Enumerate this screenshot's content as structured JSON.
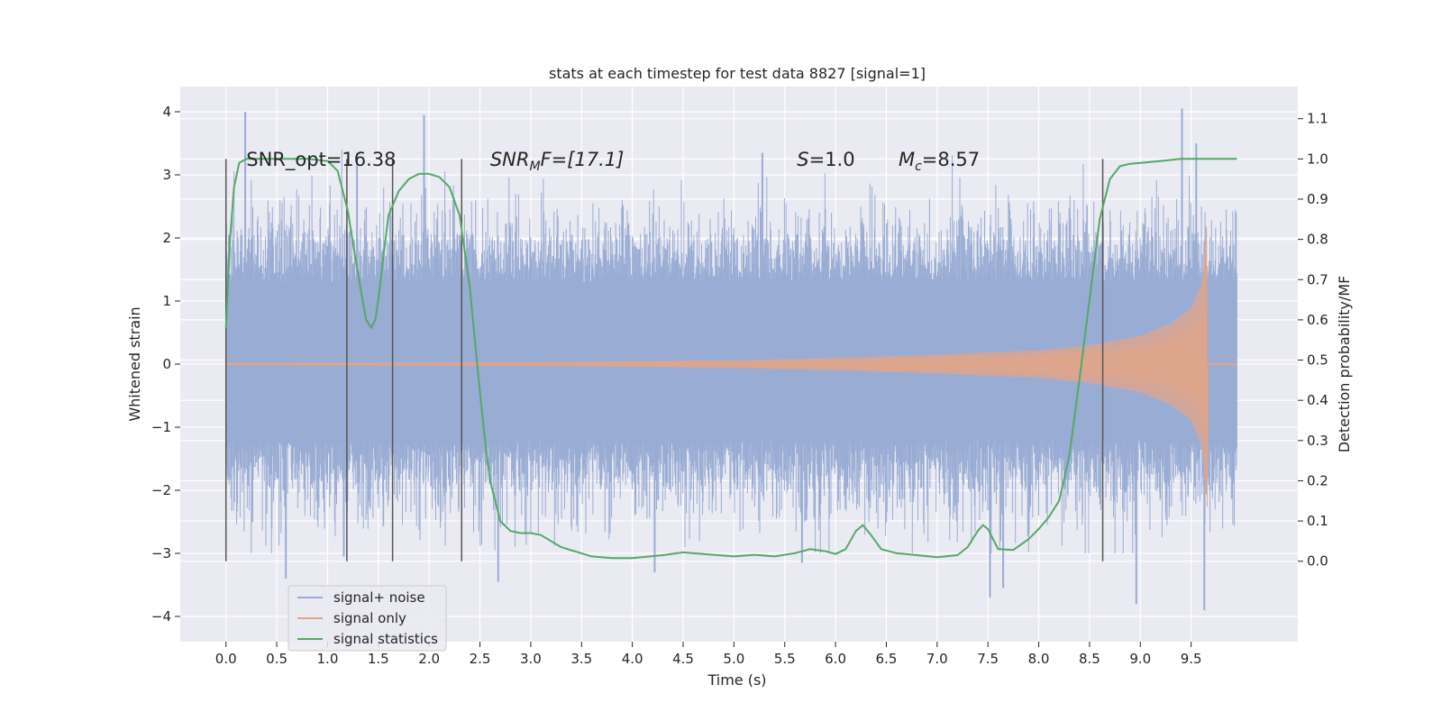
{
  "chart_data": {
    "type": "line",
    "title": "stats at each timestep for test data 8827 [signal=1]",
    "xlabel": "Time (s)",
    "ylabel_left": "Whitened strain",
    "ylabel_right": "Detection probability/MF",
    "xlim": [
      -0.45,
      10.55
    ],
    "ylim_left": [
      -4.4,
      4.4
    ],
    "ylim_right": [
      -0.2,
      1.18
    ],
    "x_ticks": [
      "0.0",
      "0.5",
      "1.0",
      "1.5",
      "2.0",
      "2.5",
      "3.0",
      "3.5",
      "4.0",
      "4.5",
      "5.0",
      "5.5",
      "6.0",
      "6.5",
      "7.0",
      "7.5",
      "8.0",
      "8.5",
      "9.0",
      "9.5"
    ],
    "y_ticks_left": [
      "4",
      "3",
      "2",
      "1",
      "0",
      "−1",
      "−2",
      "−3",
      "−4"
    ],
    "y_ticks_right": [
      "1.1",
      "1.0",
      "0.9",
      "0.8",
      "0.7",
      "0.6",
      "0.5",
      "0.4",
      "0.3",
      "0.2",
      "0.1",
      "0.0"
    ],
    "grid": true,
    "annotations": [
      {
        "id": "snr-opt",
        "text": "SNR_opt=16.38",
        "x": 0.2
      },
      {
        "id": "snr-mf",
        "text": "SNR",
        "sub": "M",
        "tail": "F=[17.1]",
        "x": 2.6
      },
      {
        "id": "s-stat",
        "text": "S",
        "tail": "=1.0",
        "x": 5.62
      },
      {
        "id": "mchirp",
        "text": "M",
        "sub": "c",
        "tail": "=8.57",
        "x": 6.62
      }
    ],
    "vlines": [
      0.0,
      1.19,
      1.64,
      2.32,
      8.63
    ],
    "vline_range_right": [
      0.0,
      1.0
    ],
    "legend": {
      "position": "lower-left",
      "entries": [
        "signal+ noise",
        "signal only",
        "signal statistics"
      ]
    },
    "series": [
      {
        "name": "signal+ noise",
        "axis": "left",
        "style": "noise-band",
        "x_range": [
          0.0,
          9.95
        ],
        "band_min": -1.2,
        "band_max": 1.3,
        "spike_max": 4.0,
        "spike_min": -3.9,
        "spikes": [
          {
            "x": 0.19,
            "y": 4.0
          },
          {
            "x": 1.29,
            "y": 3.35
          },
          {
            "x": 1.95,
            "y": 3.95
          },
          {
            "x": 5.28,
            "y": 3.35
          },
          {
            "x": 9.41,
            "y": 4.05
          },
          {
            "x": 9.55,
            "y": 3.5
          },
          {
            "x": 0.59,
            "y": -3.4
          },
          {
            "x": 1.16,
            "y": -3.05
          },
          {
            "x": 2.68,
            "y": -3.45
          },
          {
            "x": 4.22,
            "y": -3.3
          },
          {
            "x": 5.67,
            "y": -3.15
          },
          {
            "x": 7.52,
            "y": -3.7
          },
          {
            "x": 7.65,
            "y": -3.55
          },
          {
            "x": 8.96,
            "y": -3.8
          },
          {
            "x": 9.63,
            "y": -3.9
          }
        ]
      },
      {
        "name": "signal only",
        "axis": "left",
        "style": "chirp",
        "x_range": [
          0.0,
          9.95
        ],
        "merger_time": 9.66,
        "amplitude_samples": [
          [
            0.0,
            0.02
          ],
          [
            3.0,
            0.03
          ],
          [
            5.0,
            0.06
          ],
          [
            6.0,
            0.1
          ],
          [
            7.0,
            0.15
          ],
          [
            8.0,
            0.22
          ],
          [
            8.5,
            0.3
          ],
          [
            9.0,
            0.45
          ],
          [
            9.3,
            0.65
          ],
          [
            9.5,
            0.9
          ],
          [
            9.6,
            1.3
          ],
          [
            9.66,
            2.3
          ]
        ]
      },
      {
        "name": "signal statistics",
        "axis": "right",
        "style": "line",
        "x": [
          0.0,
          0.04,
          0.08,
          0.13,
          0.2,
          0.3,
          0.5,
          0.8,
          1.0,
          1.1,
          1.2,
          1.27,
          1.33,
          1.38,
          1.43,
          1.47,
          1.5,
          1.55,
          1.6,
          1.7,
          1.8,
          1.9,
          2.0,
          2.1,
          2.2,
          2.3,
          2.4,
          2.5,
          2.55,
          2.6,
          2.7,
          2.8,
          2.9,
          3.0,
          3.1,
          3.3,
          3.6,
          3.8,
          4.0,
          4.3,
          4.5,
          4.8,
          5.0,
          5.2,
          5.4,
          5.6,
          5.75,
          5.9,
          6.0,
          6.1,
          6.2,
          6.27,
          6.35,
          6.45,
          6.6,
          6.8,
          7.0,
          7.2,
          7.3,
          7.4,
          7.45,
          7.5,
          7.6,
          7.75,
          7.9,
          8.0,
          8.1,
          8.2,
          8.3,
          8.4,
          8.5,
          8.6,
          8.7,
          8.8,
          8.9,
          9.0,
          9.2,
          9.4,
          9.6,
          9.95
        ],
        "values": [
          0.58,
          0.8,
          0.93,
          0.99,
          1.0,
          1.0,
          1.0,
          1.0,
          0.995,
          0.97,
          0.87,
          0.76,
          0.67,
          0.6,
          0.58,
          0.6,
          0.65,
          0.76,
          0.86,
          0.92,
          0.95,
          0.963,
          0.963,
          0.955,
          0.93,
          0.86,
          0.68,
          0.42,
          0.3,
          0.2,
          0.1,
          0.075,
          0.07,
          0.07,
          0.065,
          0.035,
          0.012,
          0.008,
          0.008,
          0.015,
          0.022,
          0.016,
          0.012,
          0.016,
          0.012,
          0.02,
          0.03,
          0.025,
          0.018,
          0.03,
          0.075,
          0.09,
          0.065,
          0.03,
          0.02,
          0.015,
          0.01,
          0.015,
          0.035,
          0.075,
          0.09,
          0.08,
          0.03,
          0.028,
          0.055,
          0.08,
          0.11,
          0.15,
          0.26,
          0.45,
          0.65,
          0.85,
          0.95,
          0.982,
          0.988,
          0.99,
          0.995,
          1.0,
          1.0,
          1.0
        ]
      }
    ],
    "colors": {
      "plot_bg": "#eaeaf2",
      "grid": "#ffffff",
      "noise": "#99acd4",
      "signal": "#e5a485",
      "stat": "#55a868",
      "vline": "#555555"
    }
  }
}
